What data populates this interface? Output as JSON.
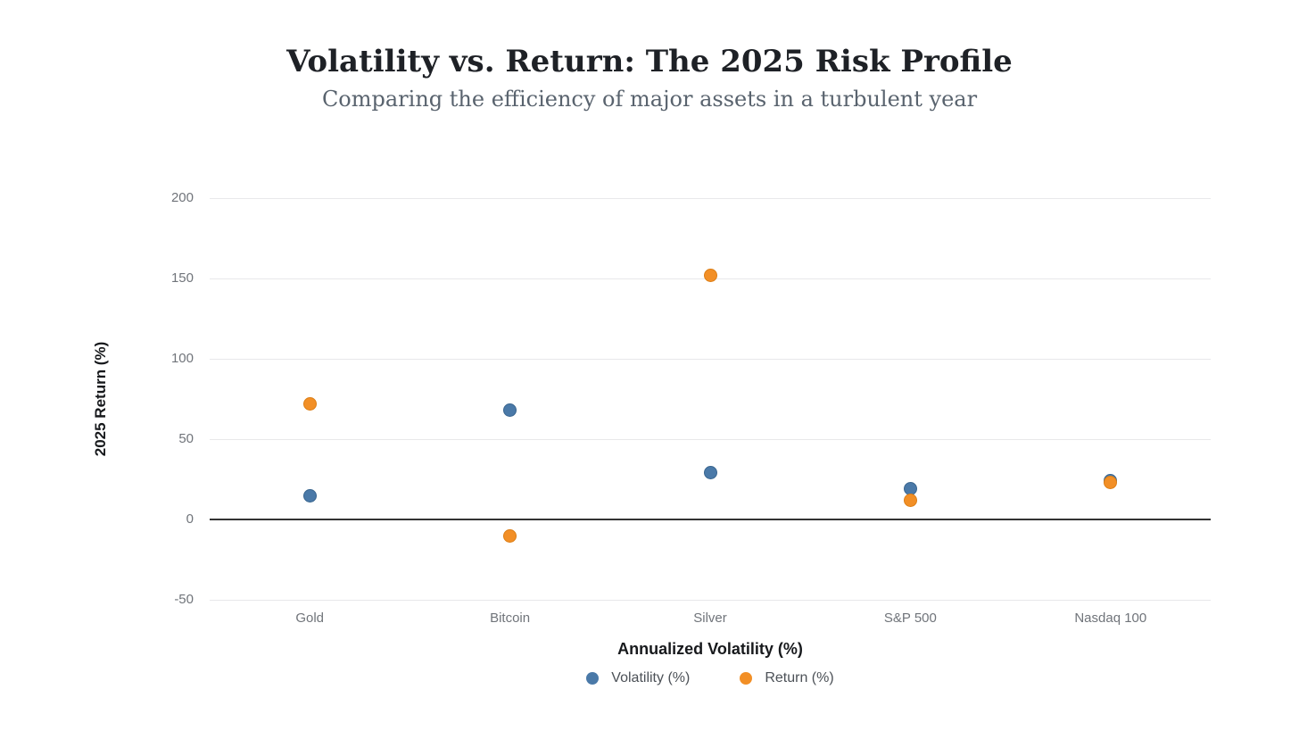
{
  "header": {
    "title": "Volatility vs. Return: The 2025 Risk Profile",
    "subtitle": "Comparing the efficiency of major assets in a turbulent year"
  },
  "chart_data": {
    "type": "scatter",
    "categories": [
      "Gold",
      "Bitcoin",
      "Silver",
      "S&P 500",
      "Nasdaq 100"
    ],
    "series": [
      {
        "name": "Volatility (%)",
        "color": "#4a79a8",
        "border": "#39658f",
        "values": [
          15,
          68,
          29,
          19,
          24
        ]
      },
      {
        "name": "Return (%)",
        "color": "#f28f26",
        "border": "#dc7e15",
        "values": [
          72,
          -10,
          152,
          12,
          23
        ]
      }
    ],
    "title": "Volatility vs. Return: The 2025 Risk Profile",
    "subtitle": "Comparing the efficiency of major assets in a turbulent year",
    "xlabel": "Annualized Volatility (%)",
    "ylabel": "2025 Return (%)",
    "ylim": [
      -50,
      200
    ],
    "yticks": [
      200,
      150,
      100,
      50,
      0,
      -50
    ],
    "grid": true,
    "legend_position": "bottom",
    "grid_color": "#e8e8ea",
    "zero_line_color": "#333333",
    "tick_label_color": "#70747a",
    "legend_text_color": "#4c5157"
  }
}
